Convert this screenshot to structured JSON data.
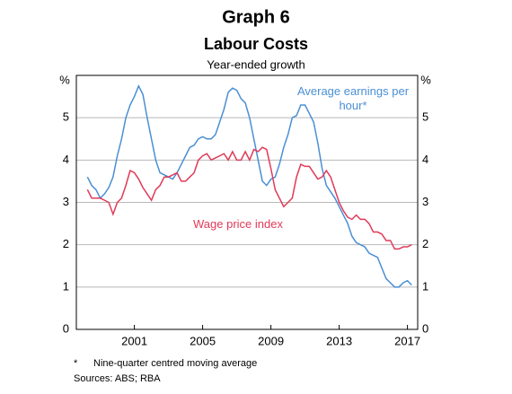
{
  "chart_data": {
    "type": "line",
    "title": "Graph 6",
    "subtitle": "Labour Costs",
    "y_label": "Year-ended growth",
    "y_unit": "%",
    "footnote_marker": "*",
    "footnote": "Nine-quarter centred moving average",
    "source": "Sources: ABS; RBA",
    "xlim": [
      1997.6,
      2017.6
    ],
    "xticks": [
      2001,
      2005,
      2009,
      2013,
      2017
    ],
    "ylim": [
      0,
      6
    ],
    "yticks": [
      0,
      1,
      2,
      3,
      4,
      5
    ],
    "grid": true,
    "x": [
      1998.25,
      1998.5,
      1998.75,
      1999,
      1999.25,
      1999.5,
      1999.75,
      2000,
      2000.25,
      2000.5,
      2000.75,
      2001,
      2001.25,
      2001.5,
      2001.75,
      2002,
      2002.25,
      2002.5,
      2002.75,
      2003,
      2003.25,
      2003.5,
      2003.75,
      2004,
      2004.25,
      2004.5,
      2004.75,
      2005,
      2005.25,
      2005.5,
      2005.75,
      2006,
      2006.25,
      2006.5,
      2006.75,
      2007,
      2007.25,
      2007.5,
      2007.75,
      2008,
      2008.25,
      2008.5,
      2008.75,
      2009,
      2009.25,
      2009.5,
      2009.75,
      2010,
      2010.25,
      2010.5,
      2010.75,
      2011,
      2011.25,
      2011.5,
      2011.75,
      2012,
      2012.25,
      2012.5,
      2012.75,
      2013,
      2013.25,
      2013.5,
      2013.75,
      2014,
      2014.25,
      2014.5,
      2014.75,
      2015,
      2015.25,
      2015.5,
      2015.75,
      2016,
      2016.25,
      2016.5,
      2016.75,
      2017,
      2017.25
    ],
    "series": [
      {
        "name": "Average earnings per hour*",
        "color": "#4a8fd4",
        "values": [
          3.6,
          3.4,
          3.3,
          3.1,
          3.2,
          3.35,
          3.6,
          4.1,
          4.5,
          5.0,
          5.3,
          5.5,
          5.75,
          5.55,
          5.0,
          4.5,
          4.0,
          3.7,
          3.65,
          3.6,
          3.55,
          3.7,
          3.9,
          4.1,
          4.3,
          4.35,
          4.5,
          4.55,
          4.5,
          4.5,
          4.6,
          4.9,
          5.2,
          5.6,
          5.7,
          5.65,
          5.45,
          5.35,
          5.0,
          4.5,
          4.0,
          3.5,
          3.4,
          3.55,
          3.6,
          3.9,
          4.3,
          4.6,
          5.0,
          5.05,
          5.3,
          5.3,
          5.1,
          4.9,
          4.4,
          3.8,
          3.4,
          3.25,
          3.1,
          2.9,
          2.7,
          2.5,
          2.2,
          2.05,
          2.0,
          1.95,
          1.8,
          1.75,
          1.7,
          1.45,
          1.2,
          1.1,
          1.0,
          1.0,
          1.1,
          1.15,
          1.05
        ]
      },
      {
        "name": "Wage price index",
        "color": "#e03a58",
        "values": [
          3.3,
          3.1,
          3.1,
          3.1,
          3.05,
          3.0,
          2.72,
          3.0,
          3.1,
          3.4,
          3.75,
          3.7,
          3.55,
          3.35,
          3.2,
          3.05,
          3.3,
          3.4,
          3.6,
          3.6,
          3.65,
          3.7,
          3.5,
          3.5,
          3.6,
          3.7,
          4.0,
          4.1,
          4.15,
          4.0,
          4.05,
          4.1,
          4.15,
          4.0,
          4.2,
          4.0,
          4.0,
          4.2,
          4.0,
          4.25,
          4.2,
          4.3,
          4.25,
          3.8,
          3.3,
          3.1,
          2.9,
          3.0,
          3.1,
          3.6,
          3.9,
          3.85,
          3.85,
          3.7,
          3.55,
          3.6,
          3.75,
          3.6,
          3.3,
          3.0,
          2.8,
          2.65,
          2.6,
          2.7,
          2.6,
          2.6,
          2.5,
          2.3,
          2.3,
          2.25,
          2.1,
          2.1,
          1.9,
          1.9,
          1.95,
          1.95,
          2.0
        ]
      }
    ]
  }
}
